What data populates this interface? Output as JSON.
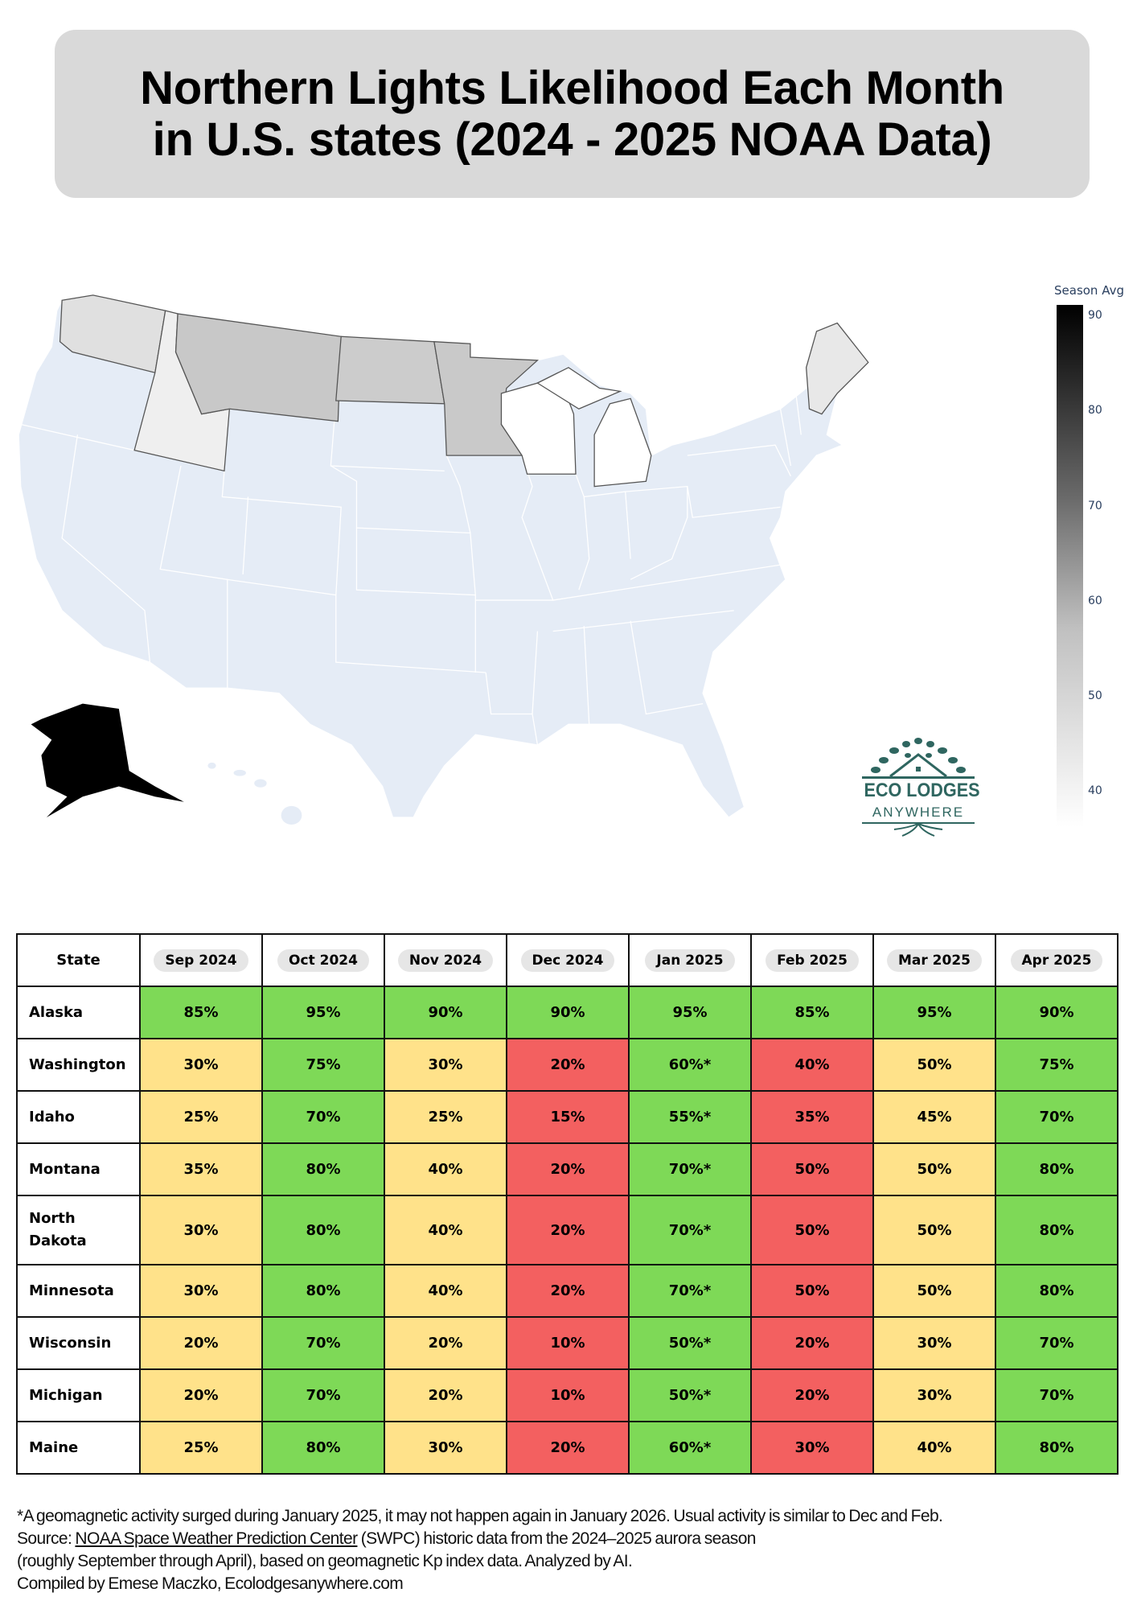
{
  "title": {
    "line1": "Northern Lights Likelihood Each Month",
    "line2": "in U.S. states (2024 - 2025 NOAA Data)"
  },
  "map": {
    "colorbar_title": "Season Avg",
    "colorbar_ticks": [
      "90",
      "80",
      "70",
      "60",
      "50",
      "40"
    ],
    "colorscale": [
      "#000000",
      "#ffffff"
    ],
    "base_state_color": "#e5ecf6"
  },
  "logo": {
    "line1": "ECO LODGES",
    "line2": "ANYWHERE",
    "color": "#2f6660"
  },
  "table": {
    "header_state": "State",
    "months": [
      "Sep 2024",
      "Oct 2024",
      "Nov 2024",
      "Dec 2024",
      "Jan 2025",
      "Feb 2025",
      "Mar 2025",
      "Apr 2025"
    ],
    "level_colors": {
      "g": "#7ed957",
      "y": "#ffe28a",
      "r": "#f36060"
    },
    "rows": [
      {
        "state": "Alaska",
        "values": [
          "85%",
          "95%",
          "90%",
          "90%",
          "95%",
          "85%",
          "95%",
          "90%"
        ],
        "levels": [
          "g",
          "g",
          "g",
          "g",
          "g",
          "g",
          "g",
          "g"
        ]
      },
      {
        "state": "Washington",
        "values": [
          "30%",
          "75%",
          "30%",
          "20%",
          "60%*",
          "40%",
          "50%",
          "75%"
        ],
        "levels": [
          "y",
          "g",
          "y",
          "r",
          "g",
          "r",
          "y",
          "g"
        ]
      },
      {
        "state": "Idaho",
        "values": [
          "25%",
          "70%",
          "25%",
          "15%",
          "55%*",
          "35%",
          "45%",
          "70%"
        ],
        "levels": [
          "y",
          "g",
          "y",
          "r",
          "g",
          "r",
          "y",
          "g"
        ]
      },
      {
        "state": "Montana",
        "values": [
          "35%",
          "80%",
          "40%",
          "20%",
          "70%*",
          "50%",
          "50%",
          "80%"
        ],
        "levels": [
          "y",
          "g",
          "y",
          "r",
          "g",
          "r",
          "y",
          "g"
        ]
      },
      {
        "state": "North Dakota",
        "values": [
          "30%",
          "80%",
          "40%",
          "20%",
          "70%*",
          "50%",
          "50%",
          "80%"
        ],
        "levels": [
          "y",
          "g",
          "y",
          "r",
          "g",
          "r",
          "y",
          "g"
        ]
      },
      {
        "state": "Minnesota",
        "values": [
          "30%",
          "80%",
          "40%",
          "20%",
          "70%*",
          "50%",
          "50%",
          "80%"
        ],
        "levels": [
          "y",
          "g",
          "y",
          "r",
          "g",
          "r",
          "y",
          "g"
        ]
      },
      {
        "state": "Wisconsin",
        "values": [
          "20%",
          "70%",
          "20%",
          "10%",
          "50%*",
          "20%",
          "30%",
          "70%"
        ],
        "levels": [
          "y",
          "g",
          "y",
          "r",
          "g",
          "r",
          "y",
          "g"
        ]
      },
      {
        "state": "Michigan",
        "values": [
          "20%",
          "70%",
          "20%",
          "10%",
          "50%*",
          "20%",
          "30%",
          "70%"
        ],
        "levels": [
          "y",
          "g",
          "y",
          "r",
          "g",
          "r",
          "y",
          "g"
        ]
      },
      {
        "state": "Maine",
        "values": [
          "25%",
          "80%",
          "30%",
          "20%",
          "60%*",
          "30%",
          "40%",
          "80%"
        ],
        "levels": [
          "y",
          "g",
          "y",
          "r",
          "g",
          "r",
          "y",
          "g"
        ]
      }
    ]
  },
  "footer": {
    "note": "*A geomagnetic activity surged during January 2025, it may not happen again in January 2026. Usual activity is similar to Dec and Feb.",
    "source_prefix": "Source: ",
    "source_link": "NOAA Space Weather Prediction Center",
    "source_rest": " (SWPC) historic data from the 2024–2025 aurora season",
    "source_line2": "(roughly September through April), based on geomagnetic Kp index data. Analyzed by AI.",
    "credit": "Compiled by Emese Maczko, Ecolodgesanywhere.com"
  }
}
